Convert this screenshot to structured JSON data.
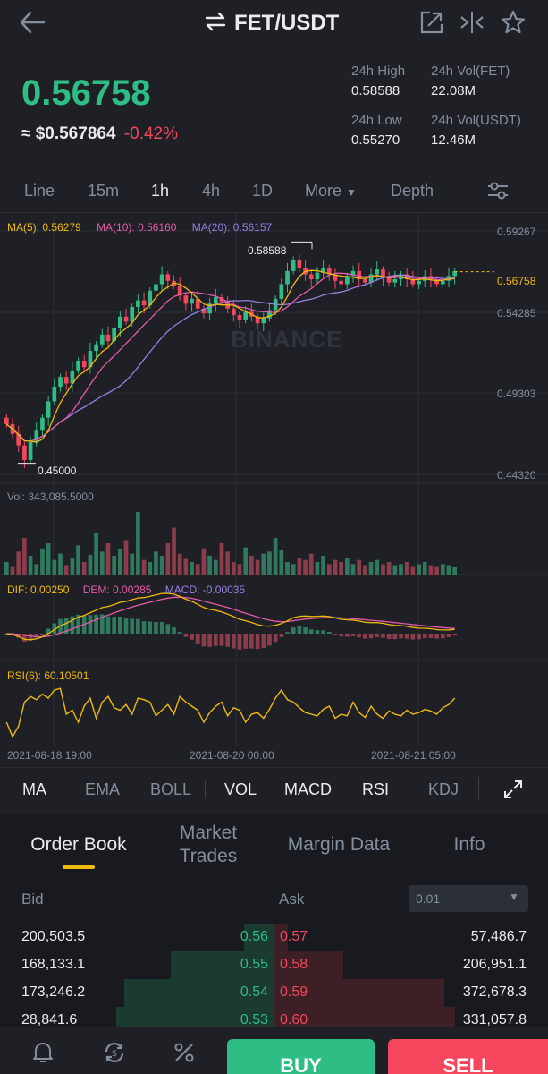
{
  "header": {
    "pair": "FET/USDT",
    "back_icon": "arrow-left-icon",
    "swap_icon": "swap-arrows-icon",
    "share_icon": "share-icon",
    "compare_icon": "compare-icon",
    "star_icon": "star-icon"
  },
  "ticker": {
    "price": "0.56758",
    "usd_price": "≈ $0.567864",
    "change": "-0.42%",
    "high_label": "24h High",
    "high_value": "0.58588",
    "low_label": "24h Low",
    "low_value": "0.55270",
    "vol_base_label": "24h Vol(FET)",
    "vol_base_value": "22.08M",
    "vol_quote_label": "24h Vol(USDT)",
    "vol_quote_value": "12.46M"
  },
  "timeframes": [
    "Line",
    "15m",
    "1h",
    "4h",
    "1D",
    "More",
    "Depth"
  ],
  "active_timeframe": "1h",
  "chart": {
    "ma5": "MA(5): 0.56279",
    "ma10": "MA(10): 0.56160",
    "ma20": "MA(20): 0.56157",
    "y_ticks": [
      "0.59267",
      "0.54285",
      "0.49303",
      "0.44320"
    ],
    "current_price_tag": "0.56758",
    "high_marker": "0.58588",
    "low_marker": "0.45000",
    "watermark": "BINANCE",
    "vol_label": "Vol: 343,085.5000",
    "dif": "DIF: 0.00250",
    "dem": "DEM: 0.00285",
    "macd": "MACD: -0.00035",
    "rsi": "RSI(6): 60.10501",
    "x_ticks": [
      "2021-08-18 19:00",
      "2021-08-20 00:00",
      "2021-08-21 05:00"
    ]
  },
  "chart_data": {
    "type": "candlestick",
    "title": "",
    "price_range": [
      0.4432,
      0.59267
    ],
    "high": 0.58588,
    "low": 0.45,
    "last": 0.56758,
    "closes": [
      0.474,
      0.468,
      0.461,
      0.452,
      0.463,
      0.47,
      0.478,
      0.488,
      0.497,
      0.503,
      0.499,
      0.507,
      0.513,
      0.509,
      0.519,
      0.523,
      0.529,
      0.525,
      0.533,
      0.54,
      0.537,
      0.546,
      0.55,
      0.547,
      0.556,
      0.56,
      0.566,
      0.562,
      0.559,
      0.553,
      0.548,
      0.551,
      0.545,
      0.542,
      0.548,
      0.552,
      0.549,
      0.545,
      0.541,
      0.538,
      0.543,
      0.54,
      0.536,
      0.539,
      0.544,
      0.551,
      0.56,
      0.568,
      0.575,
      0.57,
      0.566,
      0.563,
      0.567,
      0.57,
      0.566,
      0.562,
      0.56,
      0.565,
      0.568,
      0.563,
      0.561,
      0.566,
      0.569,
      0.564,
      0.561,
      0.563,
      0.566,
      0.563,
      0.56,
      0.562,
      0.565,
      0.563,
      0.56,
      0.562,
      0.565,
      0.568
    ],
    "volumes": [
      12,
      8,
      22,
      35,
      18,
      10,
      25,
      30,
      14,
      20,
      9,
      16,
      28,
      12,
      19,
      40,
      22,
      30,
      18,
      25,
      33,
      20,
      60,
      14,
      12,
      22,
      18,
      30,
      45,
      20,
      15,
      12,
      10,
      25,
      18,
      14,
      30,
      22,
      12,
      10,
      26,
      18,
      14,
      20,
      22,
      35,
      24,
      12,
      10,
      16,
      14,
      20,
      12,
      18,
      10,
      14,
      12,
      16,
      10,
      14,
      9,
      12,
      14,
      10,
      12,
      9,
      10,
      12,
      8,
      10,
      12,
      9,
      8,
      10,
      9,
      7
    ],
    "rsi": [
      30,
      12,
      25,
      55,
      62,
      58,
      65,
      60,
      70,
      72,
      40,
      45,
      30,
      50,
      60,
      35,
      55,
      62,
      48,
      45,
      52,
      40,
      60,
      58,
      55,
      38,
      45,
      52,
      40,
      62,
      55,
      50,
      45,
      30,
      42,
      50,
      55,
      38,
      48,
      45,
      30,
      40,
      42,
      35,
      46,
      60,
      70,
      58,
      55,
      48,
      42,
      40,
      38,
      46,
      50,
      35,
      40,
      38,
      55,
      42,
      36,
      50,
      40,
      35,
      44,
      40,
      38,
      45,
      40,
      42,
      46,
      44,
      40,
      48,
      52,
      60
    ]
  },
  "indicators": [
    "MA",
    "EMA",
    "BOLL",
    "VOL",
    "MACD",
    "RSI",
    "KDJ"
  ],
  "active_indicators": [
    "MA",
    "VOL",
    "MACD",
    "RSI"
  ],
  "tabs": [
    "Order Book",
    "Market Trades",
    "Margin Data",
    "Info"
  ],
  "active_tab": "Order Book",
  "order_book": {
    "bid_label": "Bid",
    "ask_label": "Ask",
    "precision": "0.01",
    "rows": [
      {
        "bid_qty": "200,503.5",
        "bid_price": "0.56",
        "ask_price": "0.57",
        "ask_qty": "57,486.7",
        "bid_depth": 0.11,
        "ask_depth": 0.05
      },
      {
        "bid_qty": "168,133.1",
        "bid_price": "0.55",
        "ask_price": "0.58",
        "ask_qty": "206,951.1",
        "bid_depth": 0.38,
        "ask_depth": 0.25
      },
      {
        "bid_qty": "173,246.2",
        "bid_price": "0.54",
        "ask_price": "0.59",
        "ask_qty": "372,678.3",
        "bid_depth": 0.55,
        "ask_depth": 0.62
      },
      {
        "bid_qty": "28,841.6",
        "bid_price": "0.53",
        "ask_price": "0.60",
        "ask_qty": "331,057.8",
        "bid_depth": 0.58,
        "ask_depth": 0.66
      }
    ]
  },
  "footer": {
    "buy": "BUY",
    "sell": "SELL"
  }
}
